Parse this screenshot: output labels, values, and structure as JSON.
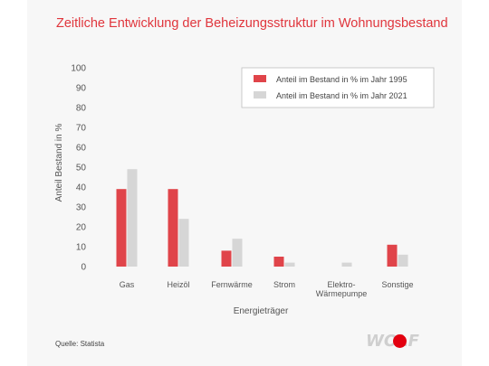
{
  "title": "Zeitliche Entwicklung der Beheizungsstruktur im Wohnungsbestand",
  "source": "Quelle: Statista",
  "brand": "WOLF",
  "colors": {
    "series1995": "#e0444a",
    "series2021": "#d6d6d6",
    "title": "#e0353c",
    "brandDot": "#e3000f"
  },
  "chart_data": {
    "type": "bar",
    "categories": [
      [
        "Gas"
      ],
      [
        "Heizöl"
      ],
      [
        "Fernwärme"
      ],
      [
        "Strom"
      ],
      [
        "Elektro-",
        "Wärmepumpe"
      ],
      [
        "Sonstige"
      ]
    ],
    "series": [
      {
        "name": "Anteil im Bestand in % im Jahr 1995",
        "values": [
          39,
          39,
          8,
          5,
          0,
          11
        ]
      },
      {
        "name": "Anteil im Bestand in % im Jahr 2021",
        "values": [
          49,
          24,
          14,
          2,
          2,
          6
        ]
      }
    ],
    "xlabel": "Energieträger",
    "ylabel": "Anteil Bestand in %",
    "ylim": [
      0,
      100
    ],
    "yticks": [
      0,
      10,
      20,
      30,
      40,
      50,
      60,
      70,
      80,
      90,
      100
    ],
    "grid": false,
    "legend_position": "top-right"
  }
}
